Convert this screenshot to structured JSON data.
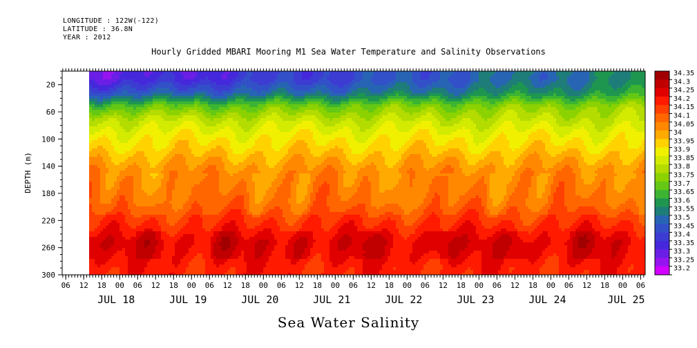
{
  "header": {
    "longitude": "LONGITUDE : 122W(-122)",
    "latitude": "LATITUDE : 36.8N",
    "year": "YEAR : 2012"
  },
  "chart_data": {
    "type": "heatmap",
    "title": "Hourly Gridded MBARI Mooring M1 Sea Water Temperature and Salinity Observations",
    "xlabel": "Sea Water Salinity",
    "ylabel": "DEPTH (m)",
    "ylim": [
      300,
      0
    ],
    "y_ticks": [
      20,
      60,
      100,
      140,
      180,
      220,
      260,
      300
    ],
    "x_hour_ticks": [
      "06",
      "12",
      "18",
      "00",
      "06",
      "12",
      "18",
      "00",
      "06",
      "12",
      "18",
      "00",
      "06",
      "12",
      "18",
      "00",
      "06",
      "12",
      "18",
      "00",
      "06",
      "12",
      "18",
      "00",
      "06",
      "12",
      "18",
      "00",
      "06",
      "12",
      "18",
      "00",
      "06"
    ],
    "x_day_labels": [
      "JUL 18",
      "JUL 19",
      "JUL 20",
      "JUL 21",
      "JUL 22",
      "JUL 23",
      "JUL 24",
      "JUL 25"
    ],
    "data_start": "JUL 17 14:00",
    "colorbar": {
      "levels": [
        "34.35",
        "34.3",
        "34.25",
        "34.2",
        "34.15",
        "34.1",
        "34.05",
        "34",
        "33.95",
        "33.9",
        "33.85",
        "33.8",
        "33.75",
        "33.7",
        "33.65",
        "33.6",
        "33.55",
        "33.5",
        "33.45",
        "33.4",
        "33.35",
        "33.3",
        "33.25",
        "33.2"
      ],
      "colors": [
        "#a00000",
        "#c00000",
        "#e00000",
        "#ff1a00",
        "#ff4000",
        "#ff6600",
        "#ff8800",
        "#ffaa00",
        "#ffd200",
        "#f0f000",
        "#d2eb00",
        "#b4dc00",
        "#8cd200",
        "#64c814",
        "#3cb432",
        "#1e9650",
        "#1e7d78",
        "#2864b4",
        "#3250c8",
        "#3c3cd2",
        "#4628dc",
        "#6a1ee6",
        "#9614f0",
        "#d200ff"
      ]
    },
    "salinity_depth_profile": [
      {
        "depth": 10,
        "salinity": 33.45
      },
      {
        "depth": 30,
        "salinity": 33.55
      },
      {
        "depth": 50,
        "salinity": 33.75
      },
      {
        "depth": 70,
        "salinity": 33.85
      },
      {
        "depth": 90,
        "salinity": 33.92
      },
      {
        "depth": 110,
        "salinity": 33.97
      },
      {
        "depth": 130,
        "salinity": 34.03
      },
      {
        "depth": 150,
        "salinity": 34.08
      },
      {
        "depth": 170,
        "salinity": 34.1
      },
      {
        "depth": 190,
        "salinity": 34.12
      },
      {
        "depth": 210,
        "salinity": 34.17
      },
      {
        "depth": 230,
        "salinity": 34.22
      },
      {
        "depth": 250,
        "salinity": 34.27
      },
      {
        "depth": 270,
        "salinity": 34.25
      },
      {
        "depth": 290,
        "salinity": 34.22
      }
    ]
  }
}
